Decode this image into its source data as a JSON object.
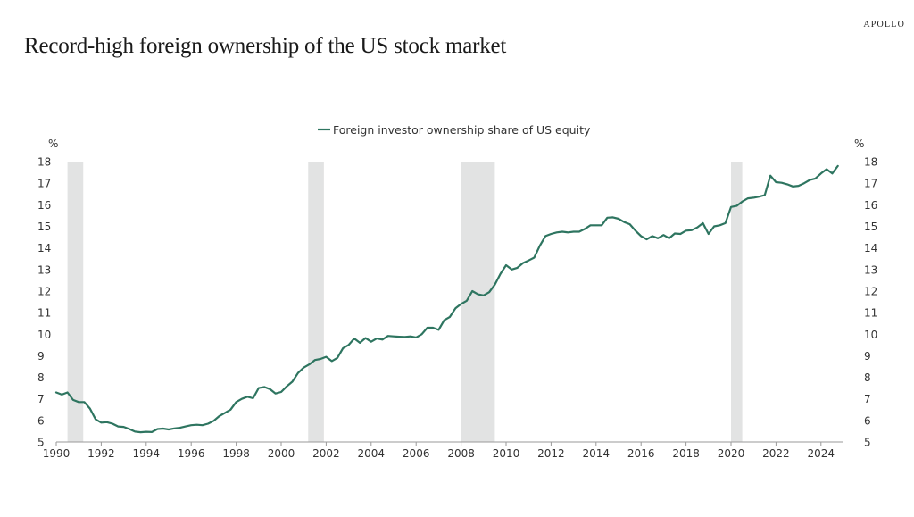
{
  "header": {
    "brand": "APOLLO",
    "title": "Record-high foreign ownership of the US stock market"
  },
  "chart_data": {
    "type": "line",
    "title": "Record-high foreign ownership of the US stock market",
    "xlabel": "",
    "ylabel": "%",
    "ylabel_right": "%",
    "xlim": [
      1990,
      2025.8
    ],
    "ylim": [
      5,
      18
    ],
    "x_ticks": [
      1990,
      1992,
      1994,
      1996,
      1998,
      2000,
      2002,
      2004,
      2006,
      2008,
      2010,
      2012,
      2014,
      2016,
      2018,
      2020,
      2022,
      2024
    ],
    "y_ticks": [
      5,
      6,
      7,
      8,
      9,
      10,
      11,
      12,
      13,
      14,
      15,
      16,
      17,
      18
    ],
    "grid": false,
    "legend": {
      "placement": "top-center",
      "entries": [
        "Foreign investor ownership share of US equity"
      ]
    },
    "colors": {
      "line": "#2e7560",
      "recession": "#e2e3e3",
      "axis": "#9a9a9a"
    },
    "recessions": [
      {
        "start": 1990.5,
        "end": 1991.2
      },
      {
        "start": 2001.2,
        "end": 2001.9
      },
      {
        "start": 2008.0,
        "end": 2009.5
      },
      {
        "start": 2020.0,
        "end": 2020.5
      }
    ],
    "series": [
      {
        "name": "Foreign investor ownership share of US equity",
        "frequency": "quarterly",
        "x": [
          1990.0,
          1990.25,
          1990.5,
          1990.75,
          1991.0,
          1991.25,
          1991.5,
          1991.75,
          1992.0,
          1992.25,
          1992.5,
          1992.75,
          1993.0,
          1993.25,
          1993.5,
          1993.75,
          1994.0,
          1994.25,
          1994.5,
          1994.75,
          1995.0,
          1995.25,
          1995.5,
          1995.75,
          1996.0,
          1996.25,
          1996.5,
          1996.75,
          1997.0,
          1997.25,
          1997.5,
          1997.75,
          1998.0,
          1998.25,
          1998.5,
          1998.75,
          1999.0,
          1999.25,
          1999.5,
          1999.75,
          2000.0,
          2000.25,
          2000.5,
          2000.75,
          2001.0,
          2001.25,
          2001.5,
          2001.75,
          2002.0,
          2002.25,
          2002.5,
          2002.75,
          2003.0,
          2003.25,
          2003.5,
          2003.75,
          2004.0,
          2004.25,
          2004.5,
          2004.75,
          2005.0,
          2005.25,
          2005.5,
          2005.75,
          2006.0,
          2006.25,
          2006.5,
          2006.75,
          2007.0,
          2007.25,
          2007.5,
          2007.75,
          2008.0,
          2008.25,
          2008.5,
          2008.75,
          2009.0,
          2009.25,
          2009.5,
          2009.75,
          2010.0,
          2010.25,
          2010.5,
          2010.75,
          2011.0,
          2011.25,
          2011.5,
          2011.75,
          2012.0,
          2012.25,
          2012.5,
          2012.75,
          2013.0,
          2013.25,
          2013.5,
          2013.75,
          2014.0,
          2014.25,
          2014.5,
          2014.75,
          2015.0,
          2015.25,
          2015.5,
          2015.75,
          2016.0,
          2016.25,
          2016.5,
          2016.75,
          2017.0,
          2017.25,
          2017.5,
          2017.75,
          2018.0,
          2018.25,
          2018.5,
          2018.75,
          2019.0,
          2019.25,
          2019.5,
          2019.75,
          2020.0,
          2020.25,
          2020.5,
          2020.75,
          2021.0,
          2021.25,
          2021.5,
          2021.75,
          2022.0,
          2022.25,
          2022.5,
          2022.75,
          2023.0,
          2023.25,
          2023.5,
          2023.75,
          2024.0,
          2024.25,
          2024.5,
          2024.75
        ],
        "values": [
          7.3,
          7.2,
          7.3,
          6.95,
          6.85,
          6.85,
          6.55,
          6.05,
          5.9,
          5.92,
          5.85,
          5.72,
          5.7,
          5.6,
          5.48,
          5.45,
          5.47,
          5.46,
          5.6,
          5.62,
          5.58,
          5.63,
          5.66,
          5.72,
          5.78,
          5.8,
          5.78,
          5.85,
          5.98,
          6.2,
          6.35,
          6.5,
          6.85,
          7.0,
          7.1,
          7.03,
          7.5,
          7.55,
          7.45,
          7.25,
          7.32,
          7.58,
          7.8,
          8.2,
          8.45,
          8.6,
          8.8,
          8.85,
          8.95,
          8.75,
          8.9,
          9.35,
          9.5,
          9.8,
          9.6,
          9.82,
          9.65,
          9.8,
          9.75,
          9.92,
          9.9,
          9.88,
          9.87,
          9.9,
          9.85,
          10.0,
          10.3,
          10.3,
          10.2,
          10.65,
          10.8,
          11.2,
          11.4,
          11.55,
          12.0,
          11.85,
          11.8,
          11.95,
          12.3,
          12.8,
          13.2,
          13.0,
          13.08,
          13.3,
          13.42,
          13.55,
          14.1,
          14.55,
          14.65,
          14.72,
          14.75,
          14.72,
          14.75,
          14.75,
          14.88,
          15.05,
          15.05,
          15.05,
          15.4,
          15.42,
          15.35,
          15.2,
          15.1,
          14.8,
          14.55,
          14.4,
          14.55,
          14.45,
          14.6,
          14.45,
          14.67,
          14.65,
          14.8,
          14.82,
          14.95,
          15.15,
          14.65,
          15.0,
          15.05,
          15.15,
          15.9,
          15.95,
          16.15,
          16.3,
          16.33,
          16.38,
          16.45,
          17.35,
          17.05,
          17.02,
          16.95,
          16.85,
          16.88,
          17.0,
          17.15,
          17.22,
          17.45,
          17.65,
          17.45,
          17.8
        ]
      }
    ]
  }
}
